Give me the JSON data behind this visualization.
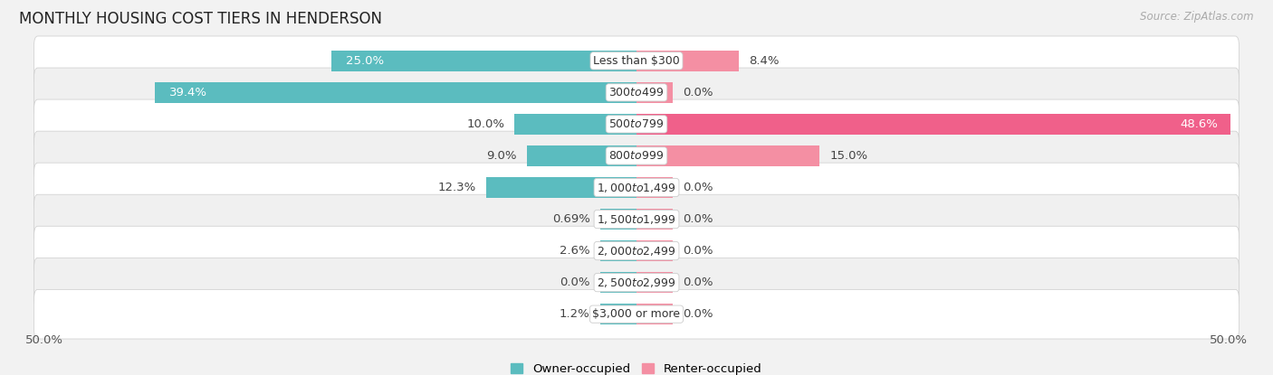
{
  "title": "MONTHLY HOUSING COST TIERS IN HENDERSON",
  "source": "Source: ZipAtlas.com",
  "categories": [
    "Less than $300",
    "$300 to $499",
    "$500 to $799",
    "$800 to $999",
    "$1,000 to $1,499",
    "$1,500 to $1,999",
    "$2,000 to $2,499",
    "$2,500 to $2,999",
    "$3,000 or more"
  ],
  "owner_values": [
    25.0,
    39.4,
    10.0,
    9.0,
    12.3,
    0.69,
    2.6,
    0.0,
    1.2
  ],
  "renter_values": [
    8.4,
    0.0,
    48.6,
    15.0,
    0.0,
    0.0,
    0.0,
    0.0,
    0.0
  ],
  "owner_color": "#5bbcbf",
  "renter_color": "#f48fa3",
  "renter_color_bright": "#f0608a",
  "owner_label": "Owner-occupied",
  "renter_label": "Renter-occupied",
  "axis_limit": 50.0,
  "background_color": "#f2f2f2",
  "row_color_even": "#ffffff",
  "row_color_odd": "#f0f0f0",
  "label_fontsize": 9.5,
  "title_fontsize": 12,
  "source_fontsize": 8.5,
  "min_stub_value": 3.0,
  "owner_label_color_inside_threshold": 15.0,
  "renter_label_color_inside_threshold": 30.0
}
